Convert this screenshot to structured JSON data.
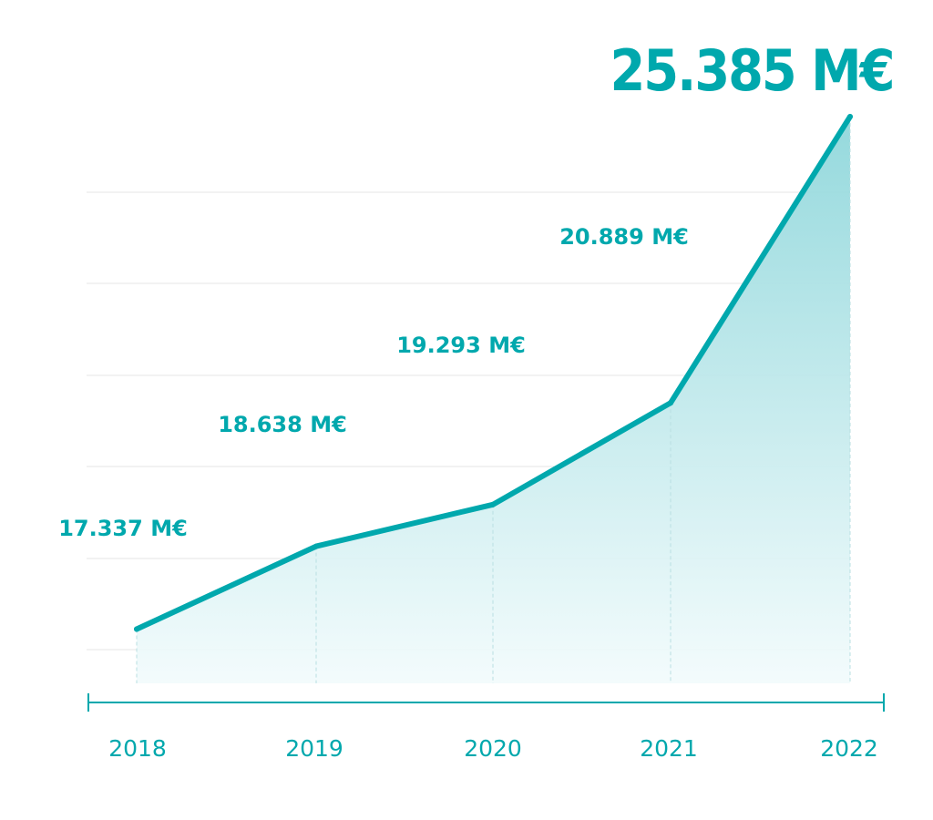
{
  "chart_data": {
    "type": "area",
    "categories": [
      "2018",
      "2019",
      "2020",
      "2021",
      "2022"
    ],
    "series": [
      {
        "values": [
          17337,
          18638,
          19293,
          20889,
          25385
        ],
        "labels": [
          "17.337 M€",
          "18.638 M€",
          "19.293 M€",
          "20.889 M€",
          "25.385 M€"
        ]
      }
    ],
    "title": "",
    "xlabel": "",
    "ylabel": "",
    "grid": true,
    "legend": "none"
  },
  "colors": {
    "accent": "#00a8ad",
    "grid": "#e6e6e6",
    "fill_top": "#8fd7db",
    "fill_bottom": "#f2fbfc"
  }
}
